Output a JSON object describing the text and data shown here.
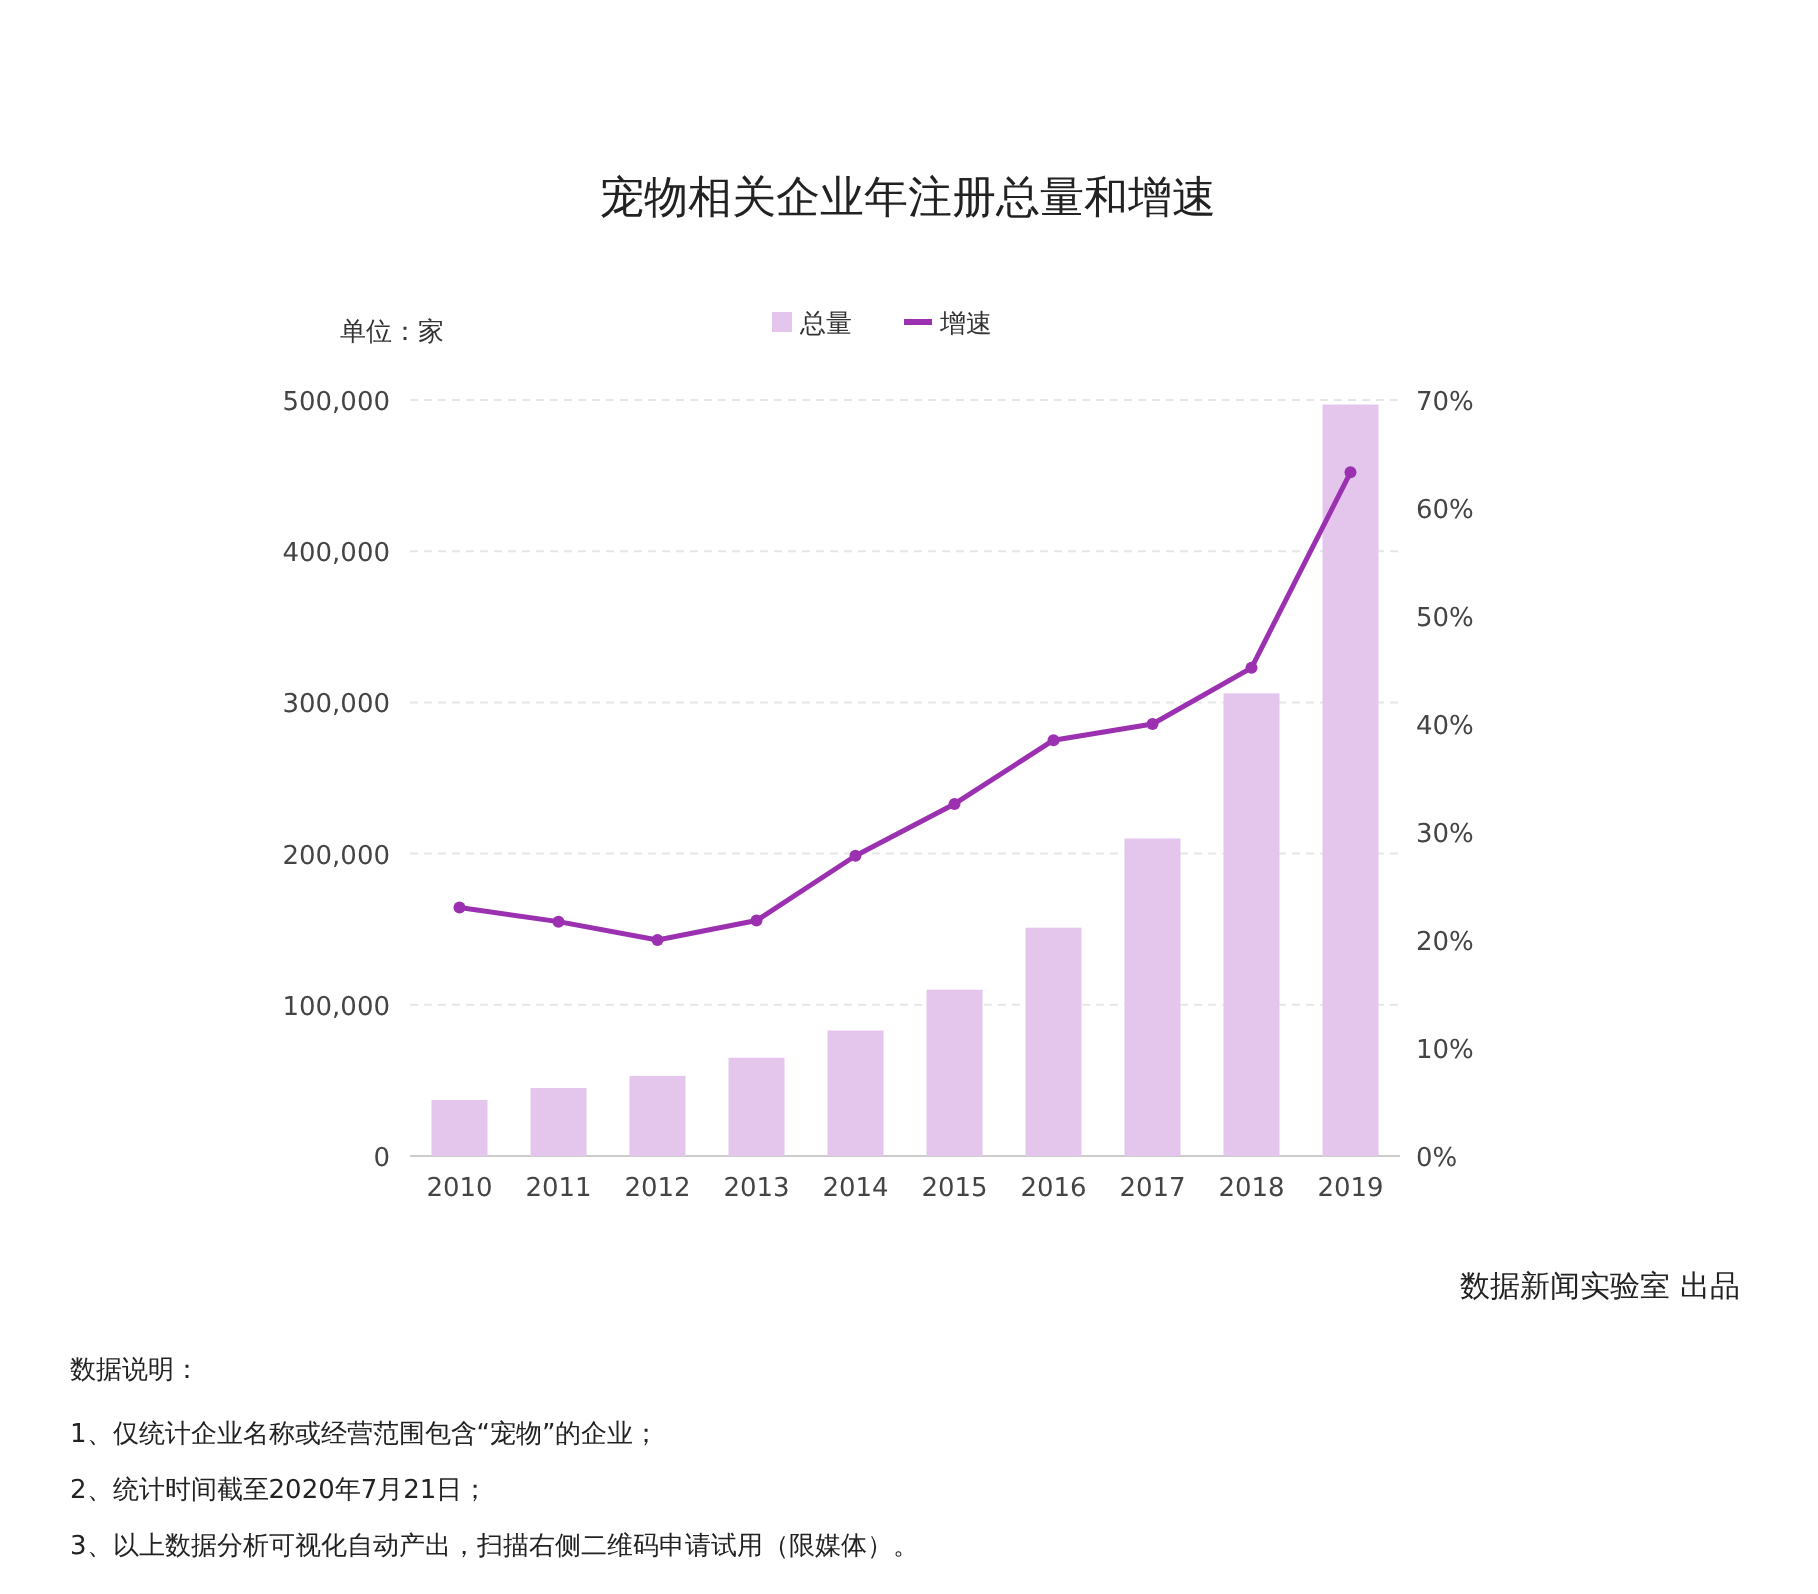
{
  "chart_data": {
    "type": "bar",
    "title": "宠物相关企业年注册总量和增速",
    "ylabel": "单位：家",
    "categories": [
      "2010",
      "2011",
      "2012",
      "2013",
      "2014",
      "2015",
      "2016",
      "2017",
      "2018",
      "2019"
    ],
    "series": [
      {
        "name": "总量",
        "color": "#e4c6ec",
        "values": [
          37000,
          45000,
          53000,
          65000,
          83000,
          110000,
          151000,
          210000,
          306000,
          497000
        ]
      },
      {
        "name": "增速",
        "type": "line",
        "axis": "y2",
        "color": "#9b30b0",
        "marker": "circle",
        "values": [
          23,
          21.7,
          20,
          21.8,
          27.8,
          32.6,
          38.5,
          40,
          45.2,
          63.3
        ]
      }
    ],
    "ylim": [
      0,
      500000
    ],
    "yticks": [
      {
        "value": 0,
        "label": "0"
      },
      {
        "value": 100000,
        "label": "100,000"
      },
      {
        "value": 200000,
        "label": "200,000"
      },
      {
        "value": 300000,
        "label": "300,000"
      },
      {
        "value": 400000,
        "label": "400,000"
      },
      {
        "value": 500000,
        "label": "500,000"
      }
    ],
    "y2lim": [
      0,
      70
    ],
    "y2ticks": [
      {
        "value": 0,
        "label": "0%"
      },
      {
        "value": 10,
        "label": "10%"
      },
      {
        "value": 20,
        "label": "20%"
      },
      {
        "value": 30,
        "label": "30%"
      },
      {
        "value": 40,
        "label": "40%"
      },
      {
        "value": 50,
        "label": "50%"
      },
      {
        "value": 60,
        "label": "60%"
      },
      {
        "value": 70,
        "label": "70%"
      }
    ],
    "grid": "y",
    "legend": "top",
    "annotations": [
      "数据新闻实验室 出品",
      "数据说明：",
      "1、仅统计企业名称或经营范围包含“宠物”的企业；",
      "2、统计时间截至2020年7月21日；",
      "3、以上数据分析可视化自动产出，扫描右侧二维码申请试用（限媒体）。"
    ]
  }
}
